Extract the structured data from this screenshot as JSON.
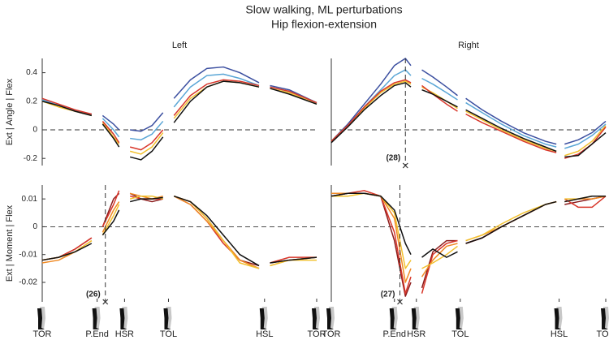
{
  "title": "Slow walking, ML perturbations",
  "subtitle": "Hip flexion-extension",
  "chart_data": [
    {
      "type": "line",
      "title": "Left",
      "ylabel": "Ext | Angle | Flex",
      "zero_line": true,
      "x": [
        0,
        6,
        12,
        18,
        20,
        22,
        26,
        28,
        30,
        32,
        36,
        40,
        44,
        46,
        48,
        54,
        60,
        66,
        72,
        79,
        81,
        83,
        90,
        100
      ],
      "xlim": [
        0,
        100
      ],
      "ylim": [
        -0.25,
        0.5
      ],
      "yticks": [
        -0.2,
        0,
        0.2,
        0.4
      ],
      "series": [
        {
          "color": "#3b4fa0",
          "values": [
            0.21,
            0.17,
            0.13,
            0.11,
            null,
            0.1,
            0.04,
            0.0,
            null,
            0.0,
            -0.01,
            0.03,
            0.12,
            null,
            0.22,
            0.35,
            0.43,
            0.44,
            0.4,
            0.33,
            null,
            0.31,
            0.28,
            0.19
          ]
        },
        {
          "color": "#5aa6d6",
          "values": [
            0.21,
            0.17,
            0.13,
            0.1,
            null,
            0.08,
            0.0,
            -0.05,
            null,
            -0.06,
            -0.07,
            -0.03,
            0.06,
            null,
            0.16,
            0.3,
            0.38,
            0.39,
            0.36,
            0.31,
            null,
            0.3,
            0.27,
            0.19
          ]
        },
        {
          "color": "#f2c12e",
          "values": [
            0.2,
            0.16,
            0.13,
            0.1,
            null,
            0.05,
            -0.05,
            -0.1,
            null,
            -0.15,
            -0.17,
            -0.12,
            -0.02,
            null,
            0.08,
            0.22,
            0.3,
            0.34,
            0.33,
            0.3,
            null,
            0.29,
            0.26,
            0.18
          ]
        },
        {
          "color": "#d8362a",
          "values": [
            0.22,
            0.18,
            0.14,
            0.11,
            null,
            0.06,
            -0.03,
            -0.09,
            null,
            -0.12,
            -0.14,
            -0.09,
            0.0,
            null,
            0.1,
            0.24,
            0.32,
            0.35,
            0.34,
            0.31,
            null,
            0.3,
            0.27,
            0.19
          ]
        },
        {
          "color": "#111111",
          "values": [
            0.2,
            0.17,
            0.13,
            0.1,
            null,
            0.04,
            -0.06,
            -0.12,
            null,
            -0.19,
            -0.21,
            -0.15,
            -0.05,
            null,
            0.05,
            0.2,
            0.3,
            0.34,
            0.33,
            0.3,
            null,
            0.29,
            0.25,
            0.18
          ]
        }
      ]
    },
    {
      "type": "line",
      "title": "Right",
      "zero_line": true,
      "x": [
        0,
        6,
        12,
        18,
        23,
        27,
        29,
        31,
        33,
        37,
        42,
        46,
        47,
        49,
        55,
        62,
        70,
        78,
        82,
        83,
        85,
        90,
        95,
        100
      ],
      "xlim": [
        0,
        100
      ],
      "ylim": [
        -0.25,
        0.5
      ],
      "annotation": {
        "x": 27,
        "label": "(28)"
      },
      "series": [
        {
          "color": "#3b4fa0",
          "values": [
            -0.08,
            0.04,
            0.18,
            0.32,
            0.45,
            0.5,
            0.45,
            null,
            0.42,
            0.37,
            0.3,
            0.24,
            null,
            0.22,
            0.14,
            0.06,
            -0.02,
            -0.08,
            -0.1,
            null,
            -0.1,
            -0.07,
            -0.02,
            0.06
          ]
        },
        {
          "color": "#5aa6d6",
          "values": [
            -0.08,
            0.03,
            0.16,
            0.28,
            0.38,
            0.42,
            0.38,
            null,
            0.36,
            0.32,
            0.26,
            0.21,
            null,
            0.19,
            0.12,
            0.04,
            -0.04,
            -0.1,
            -0.12,
            null,
            -0.13,
            -0.1,
            -0.04,
            0.04
          ]
        },
        {
          "color": "#f2c12e",
          "values": [
            -0.08,
            0.03,
            0.15,
            0.26,
            0.32,
            0.34,
            0.32,
            null,
            0.3,
            0.26,
            0.2,
            0.15,
            null,
            0.13,
            0.07,
            0.0,
            -0.07,
            -0.13,
            -0.15,
            null,
            -0.18,
            -0.15,
            -0.08,
            0.03
          ]
        },
        {
          "color": "#d8362a",
          "values": [
            -0.08,
            0.03,
            0.16,
            0.27,
            0.33,
            0.35,
            0.33,
            null,
            0.31,
            0.25,
            0.18,
            0.13,
            null,
            0.11,
            0.05,
            -0.01,
            -0.08,
            -0.14,
            -0.16,
            null,
            -0.2,
            -0.17,
            -0.1,
            0.02
          ]
        },
        {
          "color": "#111111",
          "values": [
            -0.09,
            0.02,
            0.14,
            0.24,
            0.31,
            0.33,
            0.3,
            null,
            0.28,
            0.25,
            0.2,
            0.16,
            null,
            0.14,
            0.08,
            0.01,
            -0.06,
            -0.12,
            -0.15,
            null,
            -0.19,
            -0.18,
            -0.1,
            -0.02
          ]
        }
      ]
    },
    {
      "type": "line",
      "ylabel": "Ext | Moment | Flex",
      "zero_line": true,
      "x": [
        0,
        6,
        12,
        18,
        20,
        22,
        26,
        28,
        30,
        32,
        36,
        40,
        44,
        46,
        48,
        54,
        60,
        66,
        72,
        79,
        81,
        83,
        90,
        100
      ],
      "xlim": [
        0,
        100
      ],
      "ylim": [
        -0.027,
        0.015
      ],
      "yticks": [
        -0.02,
        -0.01,
        0,
        0.01
      ],
      "annotation": {
        "x": 23,
        "label": "(26)"
      },
      "events": [
        {
          "x": 0,
          "label": "TOR"
        },
        {
          "x": 20,
          "label": "P.End"
        },
        {
          "x": 30,
          "label": "HSR"
        },
        {
          "x": 46,
          "label": "TOL"
        },
        {
          "x": 81,
          "label": "HSL"
        },
        {
          "x": 100,
          "label": "TOR"
        }
      ],
      "series": [
        {
          "color": "#8b1a1a",
          "values": [
            -0.012,
            -0.011,
            -0.008,
            -0.004,
            null,
            0.0,
            0.01,
            0.012,
            null,
            0.012,
            0.01,
            0.009,
            0.01,
            null,
            0.011,
            0.009,
            0.003,
            -0.005,
            -0.012,
            -0.014,
            null,
            -0.013,
            -0.012,
            -0.011
          ]
        },
        {
          "color": "#d8362a",
          "values": [
            -0.012,
            -0.011,
            -0.008,
            -0.004,
            null,
            0.0,
            0.008,
            0.013,
            null,
            0.011,
            0.01,
            0.01,
            0.01,
            null,
            0.011,
            0.008,
            0.002,
            -0.006,
            -0.012,
            -0.015,
            null,
            -0.013,
            -0.011,
            -0.011
          ]
        },
        {
          "color": "#f08a24",
          "values": [
            -0.013,
            -0.012,
            -0.009,
            -0.005,
            null,
            -0.002,
            0.006,
            0.009,
            null,
            0.012,
            0.011,
            0.01,
            0.011,
            null,
            0.011,
            0.008,
            0.002,
            -0.005,
            -0.012,
            -0.015,
            null,
            -0.014,
            -0.012,
            -0.011
          ]
        },
        {
          "color": "#f2c12e",
          "values": [
            -0.012,
            -0.011,
            -0.009,
            -0.005,
            null,
            -0.003,
            0.004,
            0.008,
            null,
            0.01,
            0.011,
            0.011,
            0.01,
            null,
            0.011,
            0.009,
            0.003,
            -0.005,
            -0.013,
            -0.015,
            null,
            -0.014,
            -0.012,
            -0.012
          ]
        },
        {
          "color": "#111111",
          "values": [
            -0.012,
            -0.011,
            -0.009,
            -0.006,
            null,
            -0.003,
            0.002,
            0.006,
            null,
            0.009,
            0.01,
            0.01,
            0.0105,
            null,
            0.011,
            0.009,
            0.004,
            -0.003,
            -0.01,
            -0.014,
            null,
            -0.013,
            -0.012,
            -0.011
          ]
        }
      ]
    },
    {
      "type": "line",
      "zero_line": true,
      "x": [
        0,
        6,
        12,
        18,
        23,
        27,
        29,
        31,
        33,
        37,
        42,
        46,
        47,
        49,
        55,
        62,
        70,
        78,
        82,
        83,
        85,
        90,
        95,
        100
      ],
      "xlim": [
        0,
        100
      ],
      "ylim": [
        -0.027,
        0.015
      ],
      "annotation": {
        "x": 25,
        "label": "(27)"
      },
      "events": [
        {
          "x": 0,
          "label": "TOR"
        },
        {
          "x": 23,
          "label": "P.End"
        },
        {
          "x": 31,
          "label": "HSR"
        },
        {
          "x": 47,
          "label": "TOL"
        },
        {
          "x": 83,
          "label": "HSL"
        },
        {
          "x": 100,
          "label": "TOR"
        }
      ],
      "series": [
        {
          "color": "#8b1a1a",
          "values": [
            0.011,
            0.012,
            0.012,
            0.011,
            -0.005,
            -0.025,
            -0.02,
            null,
            -0.022,
            -0.009,
            -0.005,
            -0.005,
            null,
            -0.006,
            -0.004,
            0.0,
            0.004,
            0.008,
            0.009,
            null,
            0.008,
            0.009,
            0.01,
            0.011
          ]
        },
        {
          "color": "#d8362a",
          "values": [
            0.011,
            0.012,
            0.013,
            0.011,
            -0.002,
            -0.024,
            -0.018,
            null,
            -0.024,
            -0.01,
            -0.006,
            -0.005,
            null,
            -0.006,
            -0.004,
            0.0,
            0.004,
            0.008,
            0.009,
            null,
            0.01,
            0.007,
            0.007,
            0.011
          ]
        },
        {
          "color": "#f08a24",
          "values": [
            0.012,
            0.012,
            0.012,
            0.011,
            0.003,
            -0.02,
            -0.015,
            null,
            -0.018,
            -0.012,
            -0.007,
            -0.006,
            null,
            -0.005,
            -0.003,
            0.0,
            0.004,
            0.008,
            0.009,
            null,
            0.009,
            0.01,
            0.01,
            0.011
          ]
        },
        {
          "color": "#f2c12e",
          "values": [
            0.011,
            0.011,
            0.012,
            0.011,
            0.005,
            -0.015,
            -0.012,
            null,
            -0.015,
            -0.013,
            -0.01,
            -0.007,
            null,
            -0.005,
            -0.003,
            0.001,
            0.005,
            0.008,
            0.009,
            null,
            0.01,
            0.01,
            0.011,
            0.011
          ]
        },
        {
          "color": "#111111",
          "values": [
            0.011,
            0.012,
            0.012,
            0.011,
            0.006,
            -0.006,
            -0.01,
            null,
            -0.011,
            -0.008,
            -0.011,
            -0.009,
            null,
            -0.006,
            -0.004,
            0.0,
            0.004,
            0.008,
            0.009,
            null,
            0.009,
            0.01,
            0.011,
            0.011
          ]
        }
      ]
    }
  ]
}
